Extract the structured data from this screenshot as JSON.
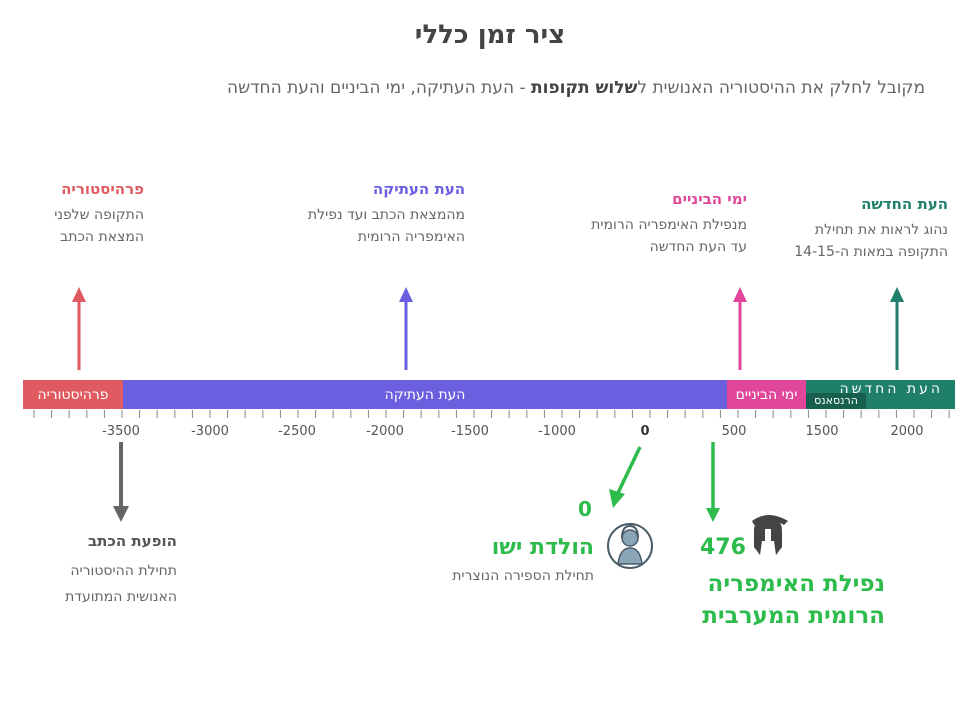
{
  "title": "ציר זמן כללי",
  "subtitle": {
    "before": "מקובל לחלק את ההיסטוריה האנושית ל",
    "bold": "שלוש תקופות",
    "after": " - העת העתיקה, ימי הביניים והעת החדשה"
  },
  "eras_above": [
    {
      "title": "פרהיסטוריה",
      "color": "#e05b61",
      "lines": [
        "התקופה שלפני",
        "המצאת הכתב"
      ]
    },
    {
      "title": "העת העתיקה",
      "color": "#6b5fe0",
      "lines": [
        "מהמצאת הכתב ועד נפילת",
        "האימפריה הרומית"
      ]
    },
    {
      "title": "ימי הביניים",
      "color": "#e0479a",
      "lines": [
        "מנפילת האימפריה הרומית",
        "עד העת החדשה"
      ]
    },
    {
      "title": "העת החדשה",
      "color": "#1f7f6b",
      "lines": [
        "נהוג לראות את תחילת",
        "התקופה במאות ה-14-15"
      ]
    }
  ],
  "bar": {
    "prehistory": "פרהיסטוריה",
    "antiquity": "העת העתיקה",
    "middle_ages": "ימי הביניים",
    "modern": "העת החדשה",
    "renaissance": "הרנסאנס"
  },
  "ticks": [
    "-3500",
    "-3000",
    "-2500",
    "-2000",
    "-1500",
    "-1000",
    "-500",
    "0",
    "500",
    "1500",
    "2000"
  ],
  "writing": {
    "title": "הופעת הכתב",
    "lines": [
      "תחילת ההיסטוריה",
      "האנושית המתועדת"
    ]
  },
  "jesus": {
    "year": "0",
    "title": "הולדת ישו",
    "sub": "תחילת הספירה הנוצרית",
    "icon": "jesus-portrait-icon"
  },
  "rome_fall": {
    "year": "476",
    "lines": [
      "נפילת האימפריה",
      "הרומית המערבית"
    ],
    "icon": "roman-helmet-icon"
  },
  "colors": {
    "green": "#2dbb4c",
    "gray_arrow": "#666666"
  }
}
